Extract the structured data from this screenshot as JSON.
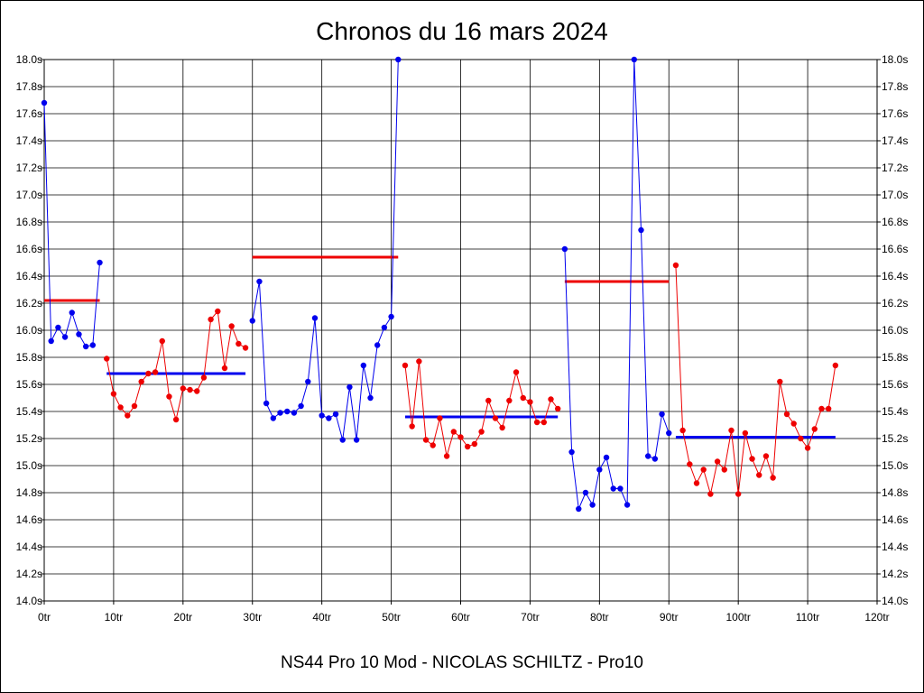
{
  "chart_data": {
    "type": "line",
    "title": "Chronos du 16 mars 2024",
    "footer": "NS44 Pro 10 Mod - NICOLAS SCHILTZ - Pro10",
    "x_ticks": [
      "0tr",
      "10tr",
      "20tr",
      "30tr",
      "40tr",
      "50tr",
      "60tr",
      "70tr",
      "80tr",
      "90tr",
      "100tr",
      "110tr",
      "120tr"
    ],
    "y_ticks": [
      "14.0s",
      "14.2s",
      "14.4s",
      "14.6s",
      "14.8s",
      "15.0s",
      "15.2s",
      "15.4s",
      "15.6s",
      "15.8s",
      "16.0s",
      "16.2s",
      "16.4s",
      "16.6s",
      "16.8s",
      "17.0s",
      "17.2s",
      "17.4s",
      "17.6s",
      "17.8s",
      "18.0s"
    ],
    "xlim": [
      0,
      120
    ],
    "ylim": [
      14.0,
      18.0
    ],
    "grid": true,
    "colors": {
      "red": "#ee0000",
      "blue": "#0000ee"
    },
    "series": [
      {
        "color": "blue",
        "x": [
          0,
          1,
          2,
          3,
          4,
          5,
          6,
          7,
          8
        ],
        "y": [
          17.68,
          15.92,
          16.02,
          15.95,
          16.13,
          15.97,
          15.88,
          15.89,
          16.5
        ]
      },
      {
        "color": "red",
        "x": [
          9,
          10,
          11,
          12,
          13,
          14,
          15,
          16,
          17,
          18,
          19,
          20,
          21,
          22,
          23,
          24,
          25,
          26,
          27,
          28,
          29
        ],
        "y": [
          15.79,
          15.53,
          15.43,
          15.37,
          15.44,
          15.62,
          15.68,
          15.69,
          15.92,
          15.51,
          15.34,
          15.57,
          15.56,
          15.55,
          15.65,
          16.08,
          16.14,
          15.72,
          16.03,
          15.9,
          15.87
        ]
      },
      {
        "color": "blue",
        "x": [
          30,
          31,
          32,
          33,
          34,
          35,
          36,
          37,
          38,
          39,
          40,
          41,
          42,
          43,
          44,
          45,
          46,
          47,
          48,
          49,
          50,
          51
        ],
        "y": [
          16.07,
          16.36,
          15.46,
          15.35,
          15.39,
          15.4,
          15.39,
          15.44,
          15.62,
          16.09,
          15.37,
          15.35,
          15.38,
          15.19,
          15.58,
          15.19,
          15.74,
          15.5,
          15.89,
          16.02,
          16.1,
          18.0
        ]
      },
      {
        "color": "red",
        "x": [
          52,
          53,
          54,
          55,
          56,
          57,
          58,
          59,
          60,
          61,
          62,
          63,
          64,
          65,
          66,
          67,
          68,
          69,
          70,
          71,
          72,
          73,
          74
        ],
        "y": [
          15.74,
          15.29,
          15.77,
          15.19,
          15.15,
          15.35,
          15.07,
          15.25,
          15.21,
          15.14,
          15.16,
          15.25,
          15.48,
          15.35,
          15.28,
          15.48,
          15.69,
          15.5,
          15.47,
          15.32,
          15.32,
          15.49,
          15.42
        ]
      },
      {
        "color": "blue",
        "x": [
          75,
          76,
          77,
          78,
          79,
          80,
          81,
          82,
          83,
          84,
          85,
          86,
          87,
          88,
          89,
          90
        ],
        "y": [
          16.6,
          15.1,
          14.68,
          14.8,
          14.71,
          14.97,
          15.06,
          14.83,
          14.83,
          14.71,
          18.0,
          16.74,
          15.07,
          15.05,
          15.38,
          15.24
        ]
      },
      {
        "color": "red",
        "x": [
          91,
          92,
          93,
          94,
          95,
          96,
          97,
          98,
          99,
          100,
          101,
          102,
          103,
          104,
          105,
          106,
          107,
          108,
          109,
          110,
          111,
          112,
          113,
          114
        ],
        "y": [
          16.48,
          15.26,
          15.01,
          14.87,
          14.97,
          14.79,
          15.03,
          14.97,
          15.26,
          14.79,
          15.24,
          15.05,
          14.93,
          15.07,
          14.91,
          15.62,
          15.38,
          15.31,
          15.2,
          15.13,
          15.27,
          15.42,
          15.42,
          15.74
        ]
      }
    ],
    "averages": [
      {
        "color": "red",
        "x_start": 0,
        "x_end": 8,
        "y": 16.22
      },
      {
        "color": "blue",
        "x_start": 9,
        "x_end": 29,
        "y": 15.68
      },
      {
        "color": "red",
        "x_start": 30,
        "x_end": 51,
        "y": 16.54
      },
      {
        "color": "blue",
        "x_start": 52,
        "x_end": 74,
        "y": 15.36
      },
      {
        "color": "red",
        "x_start": 75,
        "x_end": 90,
        "y": 16.36
      },
      {
        "color": "blue",
        "x_start": 91,
        "x_end": 114,
        "y": 15.21
      }
    ]
  }
}
